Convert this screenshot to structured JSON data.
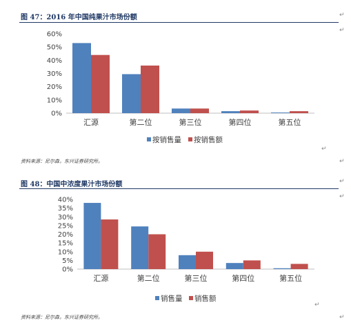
{
  "figures": [
    {
      "title": "图 47：2016 年中国纯果汁市场份额",
      "source": "资料来源：尼尔森，东兴证券研究所。",
      "chart_data": {
        "type": "bar",
        "categories": [
          "汇源",
          "第二位",
          "第三位",
          "第四位",
          "第五位"
        ],
        "series": [
          {
            "name": "按销售量",
            "color": "#4f81bd",
            "values": [
              53,
              29.5,
              3.5,
              1.5,
              0.5
            ]
          },
          {
            "name": "按销售额",
            "color": "#c0504d",
            "values": [
              44,
              36,
              3.5,
              2,
              1.5
            ]
          }
        ],
        "yticks": [
          "0%",
          "10%",
          "20%",
          "30%",
          "40%",
          "50%",
          "60%"
        ],
        "ylim": [
          0,
          60
        ],
        "legend": "bottom"
      }
    },
    {
      "title": "图 48：中国中浓度果汁市场份额",
      "source": "资料来源：尼尔森，东兴证券研究所。",
      "chart_data": {
        "type": "bar",
        "categories": [
          "汇源",
          "第二位",
          "第三位",
          "第四位",
          "第五位"
        ],
        "series": [
          {
            "name": "销售量",
            "color": "#4f81bd",
            "values": [
              38,
              24.5,
              8,
              3.5,
              0.5
            ]
          },
          {
            "name": "销售额",
            "color": "#c0504d",
            "values": [
              28.5,
              20,
              10,
              5,
              3
            ]
          }
        ],
        "yticks": [
          "0%",
          "5%",
          "10%",
          "15%",
          "20%",
          "25%",
          "30%",
          "35%",
          "40%"
        ],
        "ylim": [
          0,
          40
        ],
        "legend": "bottom"
      }
    }
  ],
  "para_mark": "↵"
}
